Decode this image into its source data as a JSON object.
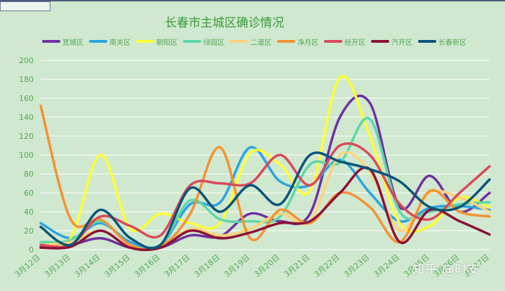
{
  "watermark": "知乎 @时安",
  "chart_data": {
    "type": "line",
    "title": "长春市主城区确诊情况",
    "xlabel": "",
    "ylabel": "",
    "ylim": [
      0,
      200
    ],
    "yticks": [
      0,
      20,
      40,
      60,
      80,
      100,
      120,
      140,
      160,
      180,
      200
    ],
    "grid": true,
    "legend": "top",
    "categories": [
      "3月12日",
      "3月13日",
      "3月14日",
      "3月15日",
      "3月16日",
      "3月17日",
      "3月18日",
      "3月19日",
      "3月20日",
      "3月21日",
      "3月22日",
      "3月23日",
      "3月24日",
      "3月25日",
      "3月26日",
      "3月27日"
    ],
    "series": [
      {
        "name": "宽城区",
        "color": "#7030a0",
        "values": [
          3,
          5,
          12,
          2,
          2,
          15,
          14,
          38,
          30,
          38,
          140,
          155,
          45,
          78,
          40,
          60
        ]
      },
      {
        "name": "南关区",
        "color": "#2ba3e0",
        "values": [
          28,
          12,
          28,
          8,
          5,
          48,
          50,
          108,
          72,
          68,
          95,
          60,
          30,
          44,
          46,
          42
        ]
      },
      {
        "name": "朝阳区",
        "color": "#ffff33",
        "values": [
          5,
          12,
          100,
          22,
          38,
          28,
          28,
          102,
          90,
          62,
          182,
          120,
          28,
          25,
          55,
          45
        ]
      },
      {
        "name": "绿园区",
        "color": "#5ed6a8",
        "values": [
          8,
          10,
          30,
          5,
          5,
          52,
          32,
          30,
          35,
          90,
          92,
          138,
          40,
          40,
          48,
          50
        ]
      },
      {
        "name": "二道区",
        "color": "#ffd37a",
        "values": [
          5,
          8,
          20,
          3,
          2,
          22,
          15,
          22,
          38,
          30,
          100,
          82,
          20,
          60,
          55,
          40
        ]
      },
      {
        "name": "净月区",
        "color": "#f59131",
        "values": [
          152,
          32,
          32,
          5,
          3,
          38,
          108,
          12,
          42,
          28,
          60,
          45,
          8,
          62,
          40,
          35
        ]
      },
      {
        "name": "经开区",
        "color": "#d9495a",
        "values": [
          5,
          5,
          35,
          25,
          15,
          68,
          70,
          70,
          100,
          68,
          110,
          100,
          48,
          32,
          60,
          88
        ]
      },
      {
        "name": "汽开区",
        "color": "#8b1238",
        "values": [
          2,
          3,
          20,
          2,
          2,
          20,
          12,
          18,
          28,
          30,
          60,
          85,
          8,
          42,
          30,
          16
        ]
      },
      {
        "name": "长春新区",
        "color": "#0a5478",
        "values": [
          24,
          5,
          42,
          12,
          5,
          65,
          40,
          68,
          48,
          100,
          93,
          85,
          72,
          45,
          45,
          74
        ]
      }
    ]
  }
}
